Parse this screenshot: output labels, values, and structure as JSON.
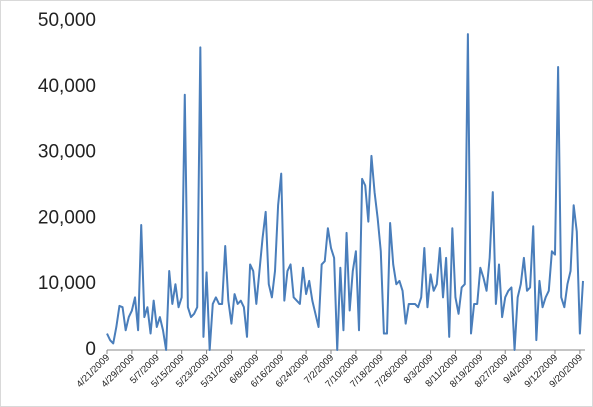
{
  "chart_data": {
    "type": "line",
    "categories": [
      "4/21/2009",
      null,
      null,
      null,
      null,
      null,
      null,
      null,
      "4/29/2009",
      null,
      null,
      null,
      null,
      null,
      null,
      null,
      "5/7/2009",
      null,
      null,
      null,
      null,
      null,
      null,
      null,
      "5/15/2009",
      null,
      null,
      null,
      null,
      null,
      null,
      null,
      "5/23/2009",
      null,
      null,
      null,
      null,
      null,
      null,
      null,
      "5/31/2009",
      null,
      null,
      null,
      null,
      null,
      null,
      null,
      "6/8/2009",
      null,
      null,
      null,
      null,
      null,
      null,
      null,
      "6/16/2009",
      null,
      null,
      null,
      null,
      null,
      null,
      null,
      "6/24/2009",
      null,
      null,
      null,
      null,
      null,
      null,
      null,
      "7/2/2009",
      null,
      null,
      null,
      null,
      null,
      null,
      null,
      "7/10/2009",
      null,
      null,
      null,
      null,
      null,
      null,
      null,
      "7/18/2009",
      null,
      null,
      null,
      null,
      null,
      null,
      null,
      "7/26/2009",
      null,
      null,
      null,
      null,
      null,
      null,
      null,
      "8/3/2009",
      null,
      null,
      null,
      null,
      null,
      null,
      null,
      "8/11/2009",
      null,
      null,
      null,
      null,
      null,
      null,
      null,
      "8/19/2009",
      null,
      null,
      null,
      null,
      null,
      null,
      null,
      "8/27/2009",
      null,
      null,
      null,
      null,
      null,
      null,
      null,
      "9/4/2009",
      null,
      null,
      null,
      null,
      null,
      null,
      null,
      "9/12/2009",
      null,
      null,
      null,
      null,
      null,
      null,
      null,
      "9/20/2009",
      null
    ],
    "values": [
      2500,
      1500,
      1000,
      3500,
      6700,
      6500,
      3000,
      5000,
      6000,
      8000,
      3000,
      19000,
      5000,
      6500,
      2500,
      7500,
      3500,
      5000,
      3000,
      0,
      12000,
      7000,
      10000,
      6500,
      8000,
      38800,
      6500,
      5000,
      5500,
      6500,
      46000,
      2000,
      11800,
      0,
      7000,
      8000,
      7000,
      7000,
      15800,
      7500,
      4000,
      8500,
      7000,
      7500,
      6500,
      2000,
      13000,
      12000,
      7000,
      12000,
      17000,
      21000,
      10000,
      8000,
      12000,
      22000,
      26800,
      7500,
      12000,
      13000,
      8000,
      7500,
      7000,
      12500,
      8500,
      10500,
      7500,
      5500,
      3500,
      13000,
      13500,
      18500,
      15500,
      14000,
      0,
      12500,
      3000,
      17800,
      6000,
      12000,
      15000,
      3000,
      26000,
      25000,
      19500,
      29500,
      24000,
      20000,
      15000,
      2500,
      2500,
      19300,
      13000,
      10000,
      10500,
      9000,
      4000,
      7000,
      7000,
      7000,
      6500,
      8000,
      15500,
      6500,
      11500,
      9000,
      10000,
      15500,
      8000,
      14000,
      2000,
      18500,
      8000,
      5500,
      9500,
      10000,
      48000,
      2500,
      7000,
      7000,
      12500,
      11000,
      9000,
      14000,
      24000,
      7000,
      13000,
      5000,
      8000,
      9000,
      9500,
      0,
      8000,
      10000,
      14000,
      9000,
      9500,
      18800,
      1500,
      10500,
      6500,
      8000,
      9000,
      15000,
      14500,
      43000,
      8000,
      6500,
      10000,
      12000,
      22000,
      18000,
      2500,
      10500
    ],
    "color": "#4a7ebb",
    "ylim": [
      0,
      50000
    ],
    "yticks": [
      0,
      {
        "value": 10000,
        "label": "10,000"
      },
      {
        "value": 20000,
        "label": "20,000"
      },
      {
        "value": 30000,
        "label": "30,000"
      },
      {
        "value": 40000,
        "label": "40,000"
      },
      {
        "value": 50000,
        "label": "50,000"
      }
    ],
    "grid": false
  }
}
